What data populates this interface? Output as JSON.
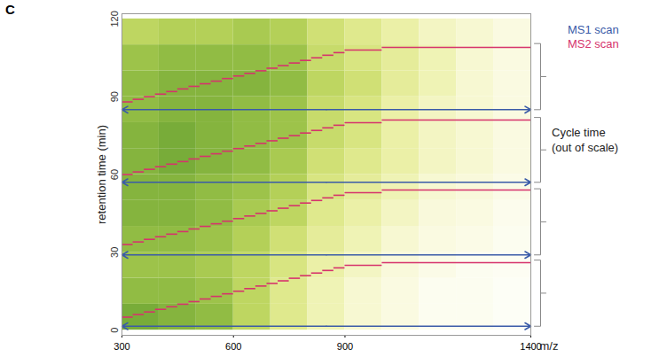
{
  "chart_data": {
    "type": "heatmap",
    "panel": "C",
    "xlabel": "m/z",
    "ylabel": "retention time (min)",
    "xlim": [
      300,
      1400
    ],
    "xticks": [
      300,
      600,
      900,
      1400
    ],
    "ylim": [
      -2,
      122
    ],
    "yticks": [
      0,
      30,
      60,
      90,
      120
    ],
    "legend": "right",
    "heatmap": {
      "mz_bins": [
        300,
        400,
        500,
        600,
        700,
        800,
        900,
        1000,
        1100,
        1200,
        1300,
        1400
      ],
      "rt_bins": [
        0,
        10,
        20,
        30,
        40,
        50,
        60,
        70,
        80,
        90,
        100,
        110,
        120
      ],
      "intensity": [
        [
          0.9,
          0.85,
          0.8,
          0.6,
          0.4,
          0.25,
          0.15,
          0.1,
          0.05,
          0.05,
          0.03
        ],
        [
          0.8,
          0.8,
          0.75,
          0.6,
          0.4,
          0.25,
          0.15,
          0.1,
          0.05,
          0.05,
          0.03
        ],
        [
          0.75,
          0.75,
          0.7,
          0.6,
          0.45,
          0.3,
          0.2,
          0.12,
          0.08,
          0.05,
          0.04
        ],
        [
          0.8,
          0.8,
          0.75,
          0.65,
          0.5,
          0.35,
          0.25,
          0.15,
          0.1,
          0.08,
          0.05
        ],
        [
          0.85,
          0.85,
          0.8,
          0.7,
          0.6,
          0.4,
          0.3,
          0.2,
          0.12,
          0.1,
          0.06
        ],
        [
          0.85,
          0.85,
          0.8,
          0.75,
          0.65,
          0.45,
          0.35,
          0.25,
          0.15,
          0.12,
          0.08
        ],
        [
          0.85,
          0.9,
          0.85,
          0.8,
          0.7,
          0.5,
          0.4,
          0.3,
          0.2,
          0.15,
          0.1
        ],
        [
          0.85,
          0.9,
          0.85,
          0.8,
          0.75,
          0.55,
          0.45,
          0.3,
          0.2,
          0.15,
          0.1
        ],
        [
          0.8,
          0.85,
          0.85,
          0.8,
          0.75,
          0.55,
          0.45,
          0.3,
          0.2,
          0.15,
          0.1
        ],
        [
          0.8,
          0.85,
          0.85,
          0.85,
          0.8,
          0.6,
          0.5,
          0.35,
          0.25,
          0.15,
          0.1
        ],
        [
          0.75,
          0.8,
          0.8,
          0.8,
          0.75,
          0.55,
          0.45,
          0.35,
          0.25,
          0.15,
          0.1
        ],
        [
          0.6,
          0.65,
          0.65,
          0.7,
          0.65,
          0.5,
          0.4,
          0.3,
          0.2,
          0.15,
          0.1
        ]
      ],
      "color_range": [
        0,
        1
      ],
      "colormap": [
        "#ffffff",
        "#eef09a",
        "#b5d24e",
        "#5e9c30"
      ]
    },
    "series": [
      {
        "name": "MS1 scan",
        "color": "#3a5ba8",
        "type": "arrow",
        "rt": [
          1.5,
          29,
          57,
          85
        ]
      },
      {
        "name": "MS2 scan",
        "color": "#d6336c",
        "type": "step",
        "mz_bins": [
          300,
          330,
          360,
          390,
          420,
          450,
          480,
          510,
          540,
          570,
          600,
          630,
          660,
          690,
          720,
          750,
          780,
          810,
          840,
          870,
          900,
          1000,
          1400
        ],
        "cycles": [
          [
            5,
            6,
            7,
            8,
            9,
            10,
            11,
            12,
            13,
            14,
            15,
            16,
            17,
            18,
            19,
            20,
            21,
            22,
            23,
            24,
            25,
            26
          ],
          [
            33,
            34,
            35,
            36,
            37,
            38,
            39,
            40,
            41,
            42,
            43,
            44,
            45,
            46,
            47,
            48,
            49,
            50,
            51,
            52,
            53,
            54
          ],
          [
            60,
            61,
            62,
            63,
            64,
            65,
            66,
            67,
            68,
            69,
            70,
            71,
            72,
            73,
            74,
            75,
            76,
            77,
            78,
            79,
            80,
            81
          ],
          [
            88,
            89,
            90,
            91,
            92,
            93,
            94,
            95,
            96,
            97,
            98,
            99,
            100,
            101,
            102,
            103,
            104,
            105,
            106,
            107,
            108,
            109
          ]
        ]
      }
    ],
    "annotations": [
      {
        "lines": [
          "Cycle time",
          "(out of scale)"
        ],
        "brackets": [
          [
            1.5,
            27
          ],
          [
            29,
            54.5
          ],
          [
            57,
            82
          ],
          [
            85,
            110.5
          ]
        ]
      }
    ]
  }
}
